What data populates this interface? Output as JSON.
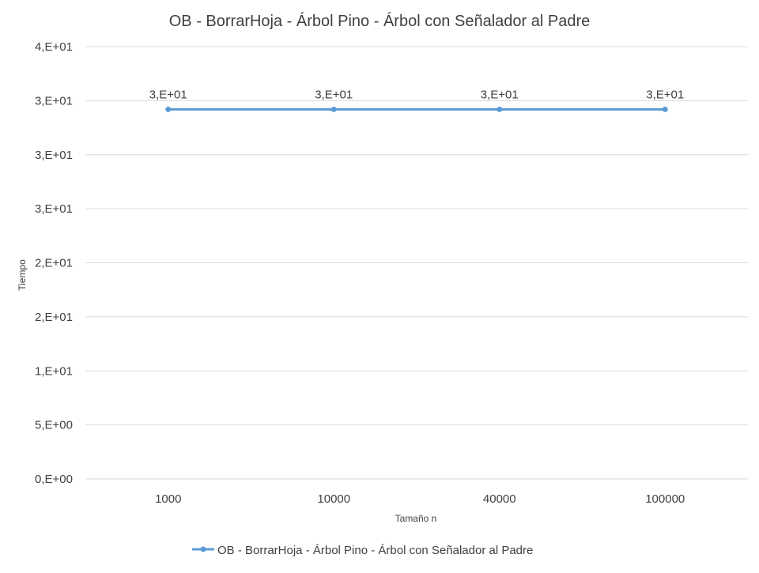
{
  "chart_data": {
    "type": "line",
    "title": "OB - BorrarHoja - Árbol Pino - Árbol con Señalador al Padre",
    "xlabel": "Tamaño n",
    "ylabel": "Tiempo",
    "categories": [
      "1000",
      "10000",
      "40000",
      "100000"
    ],
    "series": [
      {
        "name": "OB - BorrarHoja - Árbol Pino - Árbol con Señalador al Padre",
        "values": [
          34.2,
          34.2,
          34.2,
          34.2
        ],
        "data_labels": [
          "3,E+01",
          "3,E+01",
          "3,E+01",
          "3,E+01"
        ],
        "color": "#5b9bd5"
      }
    ],
    "ylim": [
      0,
      40
    ],
    "yticks": [
      0,
      5,
      10,
      15,
      20,
      25,
      30,
      35,
      40
    ],
    "ytick_labels": [
      "0,E+00",
      "5,E+00",
      "1,E+01",
      "2,E+01",
      "2,E+01",
      "3,E+01",
      "3,E+01",
      "3,E+01",
      "4,E+01"
    ],
    "grid": true,
    "legend_position": "bottom"
  }
}
